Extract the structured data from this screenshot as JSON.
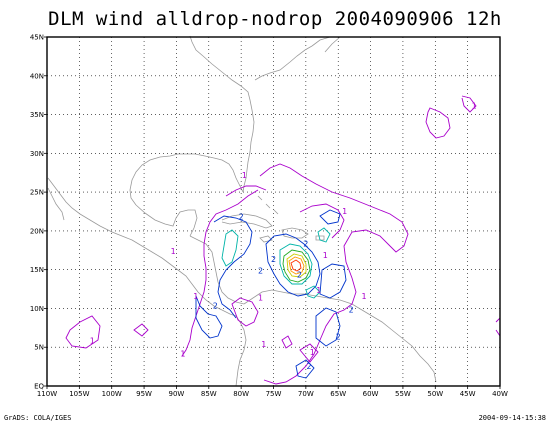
{
  "title": "DLM wind alldrop-nodrop 2004090906 12h",
  "footer": {
    "left": "GrADS: COLA/IGES",
    "right": "2004-09-14-15:38"
  },
  "axes": {
    "x_labels": [
      "110W",
      "105W",
      "100W",
      "95W",
      "90W",
      "85W",
      "80W",
      "75W",
      "70W",
      "65W",
      "60W",
      "55W",
      "50W",
      "45W",
      "40W"
    ],
    "y_labels": [
      "EQ",
      "5N",
      "10N",
      "15N",
      "20N",
      "25N",
      "30N",
      "35N",
      "40N",
      "45N"
    ],
    "lon_range": [
      -110,
      -40
    ],
    "lat_range": [
      0,
      45
    ]
  },
  "contour_labels": [
    {
      "text": "1",
      "lon": -79.5,
      "lat": 26.8
    },
    {
      "text": "1",
      "lon": -64,
      "lat": 22.2
    },
    {
      "text": "1",
      "lon": -44,
      "lat": 35.8
    },
    {
      "text": "2",
      "lon": -80,
      "lat": 21.5
    },
    {
      "text": "1",
      "lon": -90.5,
      "lat": 17
    },
    {
      "text": "1",
      "lon": -87,
      "lat": 11.2
    },
    {
      "text": "2",
      "lon": -84,
      "lat": 10
    },
    {
      "text": "2",
      "lon": -77,
      "lat": 14.5
    },
    {
      "text": "1",
      "lon": -77,
      "lat": 11
    },
    {
      "text": "2",
      "lon": -75,
      "lat": 16
    },
    {
      "text": "2",
      "lon": -70,
      "lat": 18
    },
    {
      "text": "1",
      "lon": -67,
      "lat": 16.5
    },
    {
      "text": "1",
      "lon": -68,
      "lat": 12
    },
    {
      "text": "2",
      "lon": -71,
      "lat": 14
    },
    {
      "text": "1",
      "lon": -61,
      "lat": 11.2
    },
    {
      "text": "2",
      "lon": -63,
      "lat": 9.5
    },
    {
      "text": "2",
      "lon": -65,
      "lat": 6
    },
    {
      "text": "2",
      "lon": -69.5,
      "lat": 2.2
    },
    {
      "text": "1",
      "lon": -103,
      "lat": 5.5
    },
    {
      "text": "1",
      "lon": -89,
      "lat": 3.8
    },
    {
      "text": "1",
      "lon": -76.5,
      "lat": 5
    },
    {
      "text": "1",
      "lon": -69,
      "lat": 4
    }
  ],
  "colors": {
    "coast": "#9a9a9a",
    "contour_1": "#aa00cc",
    "contour_2": "#0033cc",
    "contour_3": "#00b4a8",
    "contour_4": "#22aa22",
    "contour_5": "#cccc00",
    "contour_6": "#ff9900",
    "contour_7": "#ff3300",
    "grid": "#000000"
  }
}
